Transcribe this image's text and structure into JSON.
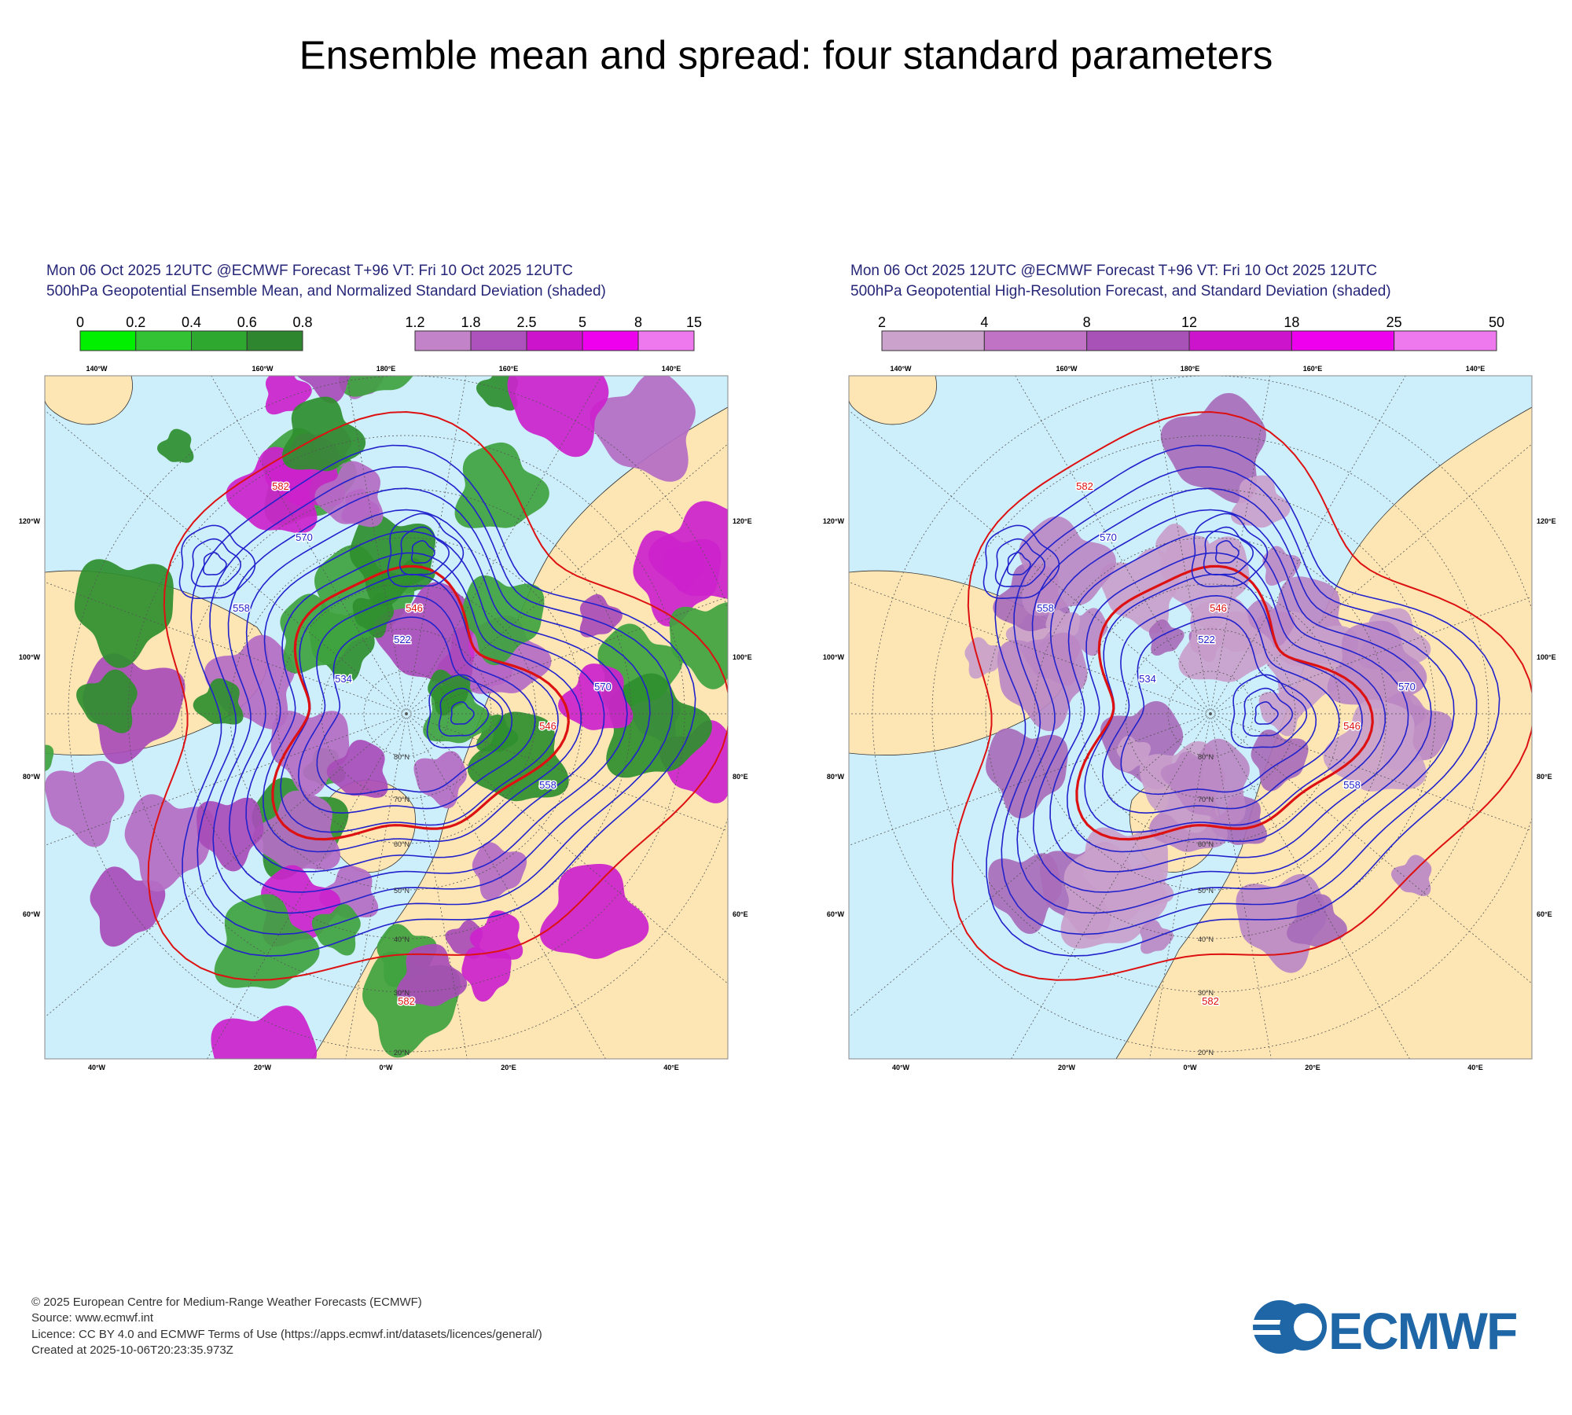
{
  "title": "Ensemble mean and spread: four standard parameters",
  "panels": [
    {
      "header": [
        "Mon 06 Oct 2025 12UTC @ECMWF Forecast T+96 VT: Fri 10 Oct 2025 12UTC",
        "500hPa Geopotential Ensemble Mean, and Normalized Standard Deviation (shaded)"
      ],
      "colorbars": [
        {
          "labels": [
            "0",
            "0.2",
            "0.4",
            "0.6",
            "0.8"
          ],
          "colors": [
            "#00f000",
            "#33c233",
            "#2fa82f",
            "#2e872e"
          ]
        },
        {
          "labels": [
            "1.2",
            "1.8",
            "2.5",
            "5",
            "8",
            "15"
          ],
          "colors": [
            "#c283c8",
            "#ad52bd",
            "#cc14cc",
            "#ee00ee",
            "#ee78ee"
          ]
        }
      ],
      "shading": [
        "#2f8f2f",
        "#3fa33f",
        "#b46cc4",
        "#a84cb8",
        "#cc22cc"
      ],
      "map": {
        "lon_top": [
          "140°W",
          "160°W",
          "180°E",
          "160°E",
          "140°E"
        ],
        "lon_left": [
          "120°W",
          "100°W",
          "80°W",
          "60°W"
        ],
        "lon_right": [
          "120°E",
          "100°E",
          "80°E",
          "60°E"
        ],
        "lon_bottom": [
          "40°W",
          "20°W",
          "0°W",
          "20°E",
          "40°E"
        ],
        "lat_labels": [
          "80°N",
          "70°N",
          "60°N",
          "50°N",
          "40°N",
          "30°N",
          "20°N"
        ],
        "contour_labels": [
          "582",
          "570",
          "558",
          "546",
          "534",
          "522",
          "582",
          "546",
          "558",
          "570"
        ]
      }
    },
    {
      "header": [
        "Mon 06 Oct 2025 12UTC @ECMWF Forecast T+96 VT: Fri 10 Oct 2025 12UTC",
        "500hPa Geopotential High-Resolution Forecast, and Standard Deviation (shaded)"
      ],
      "colorbars": [
        {
          "labels": [
            "2",
            "4",
            "8",
            "12",
            "18",
            "25",
            "50"
          ],
          "colors": [
            "#cba2cb",
            "#c073c4",
            "#a852b8",
            "#cc14cc",
            "#ee00ee",
            "#ee78ee"
          ]
        }
      ],
      "shading": [
        "#c9a0cb",
        "#bb88c4",
        "#a86cba"
      ],
      "map": {
        "lon_top": [
          "140°W",
          "160°W",
          "180°E",
          "160°E",
          "140°E"
        ],
        "lon_left": [
          "120°W",
          "100°W",
          "80°W",
          "60°W"
        ],
        "lon_right": [
          "120°E",
          "100°E",
          "80°E",
          "60°E"
        ],
        "lon_bottom": [
          "40°W",
          "20°W",
          "0°W",
          "20°E",
          "40°E"
        ],
        "lat_labels": [
          "80°N",
          "70°N",
          "60°N",
          "50°N",
          "40°N",
          "30°N",
          "20°N"
        ],
        "contour_labels": [
          "582",
          "570",
          "558",
          "546",
          "534",
          "522",
          "582",
          "546",
          "558",
          "570"
        ]
      }
    }
  ],
  "footer": [
    "© 2025 European Centre for Medium-Range Weather Forecasts (ECMWF)",
    "Source: www.ecmwf.int",
    "Licence: CC BY 4.0 and ECMWF Terms of Use (https://apps.ecmwf.int/datasets/licences/general/)",
    "Created at 2025-10-06T20:23:35.973Z"
  ],
  "logo": "ECMWF"
}
